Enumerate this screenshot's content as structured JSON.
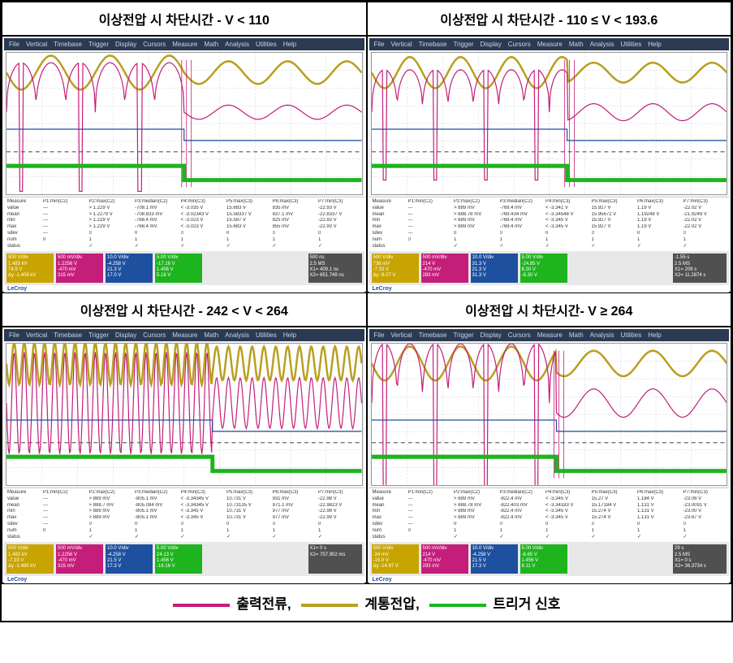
{
  "titles": {
    "tl": "이상전압 시 차단시간 - V < 110",
    "tr": "이상전압 시 차단시간 - 110 ≤ V < 193.6",
    "bl": "이상전압 시 차단시간 - 242 < V < 264",
    "br": "이상전압 시 차단시간- V ≥ 264"
  },
  "menubar": {
    "items": [
      "File",
      "Vertical",
      "Timebase",
      "Trigger",
      "Display",
      "Cursors",
      "Measure",
      "Math",
      "Analysis",
      "Utilities",
      "Help"
    ]
  },
  "colors": {
    "voltage": "#b8a020",
    "current": "#c41e7a",
    "trigger": "#1eb41e",
    "aux": "#1e50a0",
    "grid": "#cccccc",
    "bg": "#ffffff",
    "dashline": "#555555"
  },
  "legend": {
    "current": "출력전류,",
    "voltage": "계통전압,",
    "trigger": "트리거 신호"
  },
  "measure_headers": [
    "",
    "P1:min(C2)",
    "P2:max(C2)",
    "P3:median(C2)",
    "P4:min(C3)",
    "P5:max(C3)",
    "P6:max(C3)",
    "P7:min(C3)"
  ],
  "measure_labels": [
    "value",
    "mean",
    "min",
    "max",
    "sdev",
    "num",
    "status"
  ],
  "panels": {
    "tl": {
      "transition_x": 0.5,
      "wave_freq_pre": 6,
      "wave_freq_post": 6,
      "current_amp_pre": 0.35,
      "current_amp_post": 0.05,
      "voltage_amp_pre": 0.12,
      "voltage_amp_post": 0.08,
      "current_spikes": true,
      "blue_step": true,
      "measurements": [
        [
          "---",
          "> 1.229 V",
          "-708.1 mV",
          "< -3.035 V",
          "15.683 V",
          "835 mV",
          "-22.93 V"
        ],
        [
          "---",
          "> 1.2279 V",
          "-708.833 mV",
          "< -3.02343 V",
          "15.58337 V",
          "837.1 mV",
          "-22.8337 V"
        ],
        [
          "---",
          "> 1.229 V",
          "-768.4 mV",
          "< -3.023 V",
          "15.597 V",
          "825 mV",
          "-22.83 V"
        ],
        [
          "---",
          "> 1.229 V",
          "-768.4 mV",
          "< -3.023 V",
          "15.683 V",
          "855 mV",
          "-22.93 V"
        ],
        [
          "---",
          "0",
          "0",
          "0",
          "0",
          "0",
          "0"
        ],
        [
          "0",
          "1",
          "1",
          "1",
          "1",
          "1",
          "1"
        ],
        [
          "",
          "✓",
          "✓",
          "✓",
          "✓",
          "✓",
          "✓"
        ]
      ],
      "channels": {
        "c1": [
          "500 V/div",
          "1.483 kV",
          "74.9 V",
          "Δy -1.408 kV"
        ],
        "c2": [
          "500 mV/div",
          "1.2256 V",
          "-470 mV",
          "315 mV"
        ],
        "c3": [
          "10.0 V/div",
          "-4.258 V",
          "21.3 V",
          "17.0 V"
        ],
        "c4": [
          "5.00 V/div",
          "-17.16 V",
          "1.456 V",
          "5.16 V"
        ],
        "tb": [
          "500 ns",
          "2.5 MS",
          "X1= 409.1 ns",
          "X2= 651.749 ns"
        ]
      },
      "logo": "LeCroy"
    },
    "tr": {
      "transition_x": 0.55,
      "wave_freq_pre": 7,
      "wave_freq_post": 6,
      "current_amp_pre": 0.3,
      "current_amp_post": 0.06,
      "voltage_amp_pre": 0.11,
      "voltage_amp_post": 0.07,
      "current_spikes": true,
      "blue_step": true,
      "measurements": [
        [
          "---",
          "> 889 mV",
          "-769.4 mV",
          "< -3.341 V",
          "15.927 V",
          "1.19 V",
          "-22.02 V"
        ],
        [
          "---",
          "> 888.78 mV",
          "-769.434 mV",
          "< -3.34548 V",
          "15.95672 V",
          "1.19248 V",
          "-21.9249 V"
        ],
        [
          "---",
          "> 889 mV",
          "-769.4 mV",
          "< -3.345 V",
          "15.927 V",
          "1.19 V",
          "-22.02 V"
        ],
        [
          "---",
          "> 889 mV",
          "-769.4 mV",
          "< -3.345 V",
          "15.927 V",
          "1.19 V",
          "-22.02 V"
        ],
        [
          "---",
          "0",
          "0",
          "0",
          "0",
          "0",
          "0"
        ],
        [
          "0",
          "1",
          "1",
          "1",
          "1",
          "1",
          "1"
        ],
        [
          "",
          "✓",
          "✓",
          "✓",
          "✓",
          "✓",
          "✓"
        ]
      ],
      "channels": {
        "c1": [
          "500 V/div",
          "738 mV",
          "-7.33 V",
          "Δy -8.07 V"
        ],
        "c2": [
          "500 mV/div",
          "214 V",
          "-470 mV",
          "283 mV"
        ],
        "c3": [
          "10.0 V/div",
          "31.3 V",
          "21.3 V",
          "31.3 V"
        ],
        "c4": [
          "5.00 V/div",
          "-24.85 V",
          "8.30 V",
          "-8.30 V"
        ],
        "tb": [
          "-1.55 s",
          "2.5 MS",
          "X1= 209 s",
          "X2= 11.2874 s"
        ]
      },
      "logo": "LeCroy"
    },
    "bl": {
      "transition_x": 0.58,
      "wave_freq_pre": 35,
      "wave_freq_post": 30,
      "current_amp_pre": 0.4,
      "current_amp_post": 0.18,
      "voltage_amp_pre": 0.15,
      "voltage_amp_post": 0.12,
      "current_spikes": false,
      "blue_step": true,
      "measurements": [
        [
          "---",
          "> 889 mV",
          "-805.1 mV",
          "< -3.34345 V",
          "10.731 V",
          "931 mV",
          "-22.98 V"
        ],
        [
          "---",
          "> 888.7 mV",
          "-805.084 mV",
          "< -3.34345 V",
          "10.73135 V",
          "971.1 mV",
          "-22.9823 V"
        ],
        [
          "---",
          "> 889 mV",
          "-805.1 mV",
          "< -3.345 V",
          "10.731 V",
          "977 mV",
          "-22.98 V"
        ],
        [
          "---",
          "> 889 mV",
          "-805.1 mV",
          "< -3.345 V",
          "10.731 V",
          "977 mV",
          "-22.99 V"
        ],
        [
          "---",
          "0",
          "0",
          "0",
          "0",
          "0",
          "0"
        ],
        [
          "0",
          "1",
          "1",
          "1",
          "1",
          "1",
          "1"
        ],
        [
          "",
          "✓",
          "✓",
          "✓",
          "✓",
          "✓",
          "✓"
        ]
      ],
      "channels": {
        "c1": [
          "500 V/div",
          "1.483 kV",
          "-7.33 V",
          "Δy -1.490 kV"
        ],
        "c2": [
          "500 mV/div",
          "1.2256 V",
          "-470 mV",
          "315 mV"
        ],
        "c3": [
          "10.0 V/div",
          "-4.258 V",
          "21.5 V",
          "17.3 V"
        ],
        "c4": [
          "5.00 V/div",
          "24.13 V",
          "1.456 V",
          "-16.16 V"
        ],
        "tb": [
          "",
          "",
          "X1= 0 s",
          "X2= 757.902 ms"
        ]
      },
      "logo": "LeCroy"
    },
    "br": {
      "transition_x": 0.52,
      "wave_freq_pre": 7,
      "wave_freq_post": 6,
      "current_amp_pre": 0.42,
      "current_amp_post": 0.1,
      "voltage_amp_pre": 0.12,
      "voltage_amp_post": 0.09,
      "current_spikes": true,
      "blue_step": true,
      "measurements": [
        [
          "---",
          "> 889 mV",
          "-822.4 mV",
          "< -3.345 V",
          "15.27 V",
          "1.184 V",
          "-23.08 V"
        ],
        [
          "---",
          "> 888.78 mV",
          "-822.403 mV",
          "< -3.34183 V",
          "15.17184 V",
          "1.131 V",
          "-23.0091 V"
        ],
        [
          "---",
          "> 889 mV",
          "-822.4 mV",
          "< -3.345 V",
          "15.274 V",
          "1.131 V",
          "-23.00 V"
        ],
        [
          "---",
          "> 889 mV",
          "-822.4 mV",
          "< -3.345 V",
          "15.274 V",
          "1.131 V",
          "-23.67 V"
        ],
        [
          "---",
          "0",
          "0",
          "0",
          "0",
          "0",
          "0"
        ],
        [
          "0",
          "1",
          "1",
          "1",
          "1",
          "1",
          "1"
        ],
        [
          "",
          "✓",
          "✓",
          "✓",
          "✓",
          "✓",
          "✓"
        ]
      ],
      "channels": {
        "c1": [
          "500 V/div",
          "-34 mV",
          "-15.0 V",
          "Δy -14.97 V"
        ],
        "c2": [
          "500 mV/div",
          "214 V",
          "-470 mV",
          "293 mV"
        ],
        "c3": [
          "10.0 V/div",
          "-4.258 V",
          "21.5 V",
          "17.3 V"
        ],
        "c4": [
          "5.00 V/div",
          "-6.65 V",
          "1.456 V",
          "8.11 V"
        ],
        "tb": [
          "29 s",
          "2.5 MS",
          "X1= 0 s",
          "X2= 36.3734 s"
        ]
      },
      "logo": "LeCroy"
    }
  }
}
